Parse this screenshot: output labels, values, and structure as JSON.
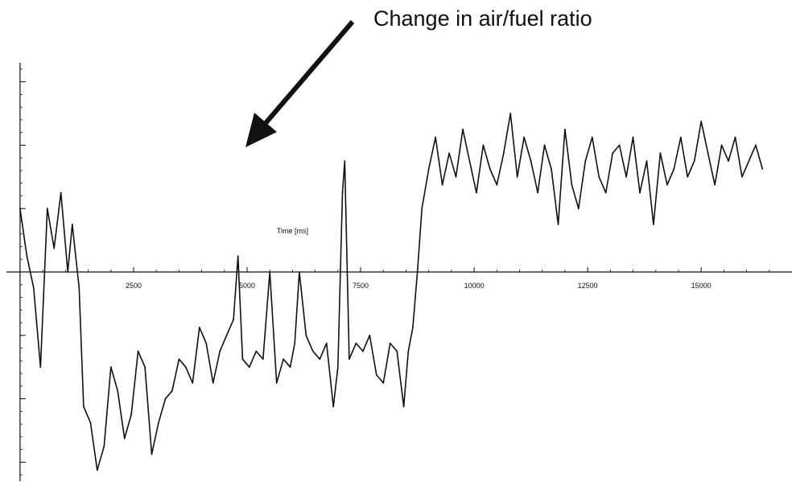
{
  "chart_data": {
    "type": "line",
    "title": "",
    "xlabel": "Time [ms]",
    "ylabel": "",
    "xlim": [
      -300,
      17000
    ],
    "ylim": [
      -1.32,
      1.32
    ],
    "x_ticks": [
      2500,
      5000,
      7500,
      10000,
      12500,
      15000
    ],
    "x_tick_labels": [
      "2500",
      "5000",
      "7500",
      "10000",
      "12500",
      "15000"
    ],
    "y_major_ticks": [
      -1.2,
      -0.8,
      -0.4,
      0.4,
      0.8,
      1.2
    ],
    "y_tick_labels_visible": false,
    "grid": false,
    "legend": "none",
    "annotation": {
      "text": "Change in air/fuel ratio",
      "arrow_direction": "down-left"
    },
    "series": [
      {
        "name": "",
        "color": "#111111",
        "x": [
          0,
          150,
          300,
          450,
          600,
          750,
          900,
          1050,
          1150,
          1300,
          1400,
          1550,
          1700,
          1850,
          2000,
          2150,
          2300,
          2450,
          2600,
          2750,
          2900,
          3050,
          3200,
          3350,
          3500,
          3650,
          3800,
          3950,
          4100,
          4250,
          4400,
          4550,
          4700,
          4800,
          4900,
          5050,
          5200,
          5350,
          5500,
          5650,
          5800,
          5950,
          6050,
          6150,
          6300,
          6450,
          6600,
          6750,
          6900,
          7000,
          7100,
          7150,
          7250,
          7400,
          7550,
          7700,
          7850,
          8000,
          8150,
          8300,
          8450,
          8550,
          8650,
          8750,
          8850,
          9000,
          9150,
          9300,
          9450,
          9600,
          9750,
          9900,
          10050,
          10200,
          10350,
          10500,
          10650,
          10800,
          10950,
          11100,
          11250,
          11400,
          11550,
          11700,
          11850,
          12000,
          12150,
          12300,
          12450,
          12600,
          12750,
          12900,
          13050,
          13200,
          13350,
          13500,
          13650,
          13800,
          13950,
          14100,
          14250,
          14400,
          14550,
          14700,
          14850,
          15000,
          15150,
          15300,
          15450,
          15600,
          15750,
          15900,
          16050,
          16200,
          16350
        ],
        "y": [
          0.4,
          0.1,
          -0.1,
          -0.6,
          0.4,
          0.15,
          0.5,
          0.0,
          0.3,
          -0.1,
          -0.85,
          -0.95,
          -1.25,
          -1.1,
          -0.6,
          -0.75,
          -1.05,
          -0.9,
          -0.5,
          -0.6,
          -1.15,
          -0.95,
          -0.8,
          -0.75,
          -0.55,
          -0.6,
          -0.7,
          -0.35,
          -0.45,
          -0.7,
          -0.5,
          -0.4,
          -0.3,
          0.1,
          -0.55,
          -0.6,
          -0.5,
          -0.55,
          0.0,
          -0.7,
          -0.55,
          -0.6,
          -0.45,
          0.0,
          -0.4,
          -0.5,
          -0.55,
          -0.45,
          -0.85,
          -0.6,
          0.5,
          0.7,
          -0.55,
          -0.45,
          -0.5,
          -0.4,
          -0.65,
          -0.7,
          -0.45,
          -0.5,
          -0.85,
          -0.5,
          -0.35,
          0.0,
          0.4,
          0.65,
          0.85,
          0.55,
          0.75,
          0.6,
          0.9,
          0.7,
          0.5,
          0.8,
          0.65,
          0.55,
          0.75,
          1.0,
          0.6,
          0.85,
          0.7,
          0.5,
          0.8,
          0.65,
          0.3,
          0.9,
          0.55,
          0.4,
          0.7,
          0.85,
          0.6,
          0.5,
          0.75,
          0.8,
          0.6,
          0.85,
          0.5,
          0.7,
          0.3,
          0.75,
          0.55,
          0.65,
          0.85,
          0.6,
          0.7,
          0.95,
          0.75,
          0.55,
          0.8,
          0.7,
          0.85,
          0.6,
          0.7,
          0.8,
          0.65
        ]
      }
    ]
  }
}
